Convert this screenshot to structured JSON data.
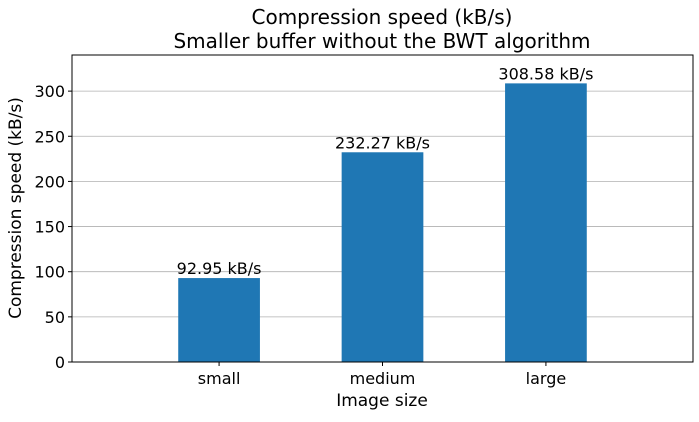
{
  "chart_data": {
    "type": "bar",
    "title": [
      "Compression speed (kB/s)",
      "Smaller buffer without the BWT algorithm"
    ],
    "xlabel": "Image size",
    "ylabel": "Compression speed (kB/s)",
    "categories": [
      "small",
      "medium",
      "large"
    ],
    "values": [
      92.95,
      232.27,
      308.58
    ],
    "data_labels": [
      "92.95 kB/s",
      "232.27 kB/s",
      "308.58 kB/s"
    ],
    "ylim": [
      0,
      340
    ],
    "yticks": [
      0,
      50,
      100,
      150,
      200,
      250,
      300
    ],
    "grid": "y",
    "legend": "none",
    "colors": {
      "bar": "#1f77b4"
    }
  }
}
